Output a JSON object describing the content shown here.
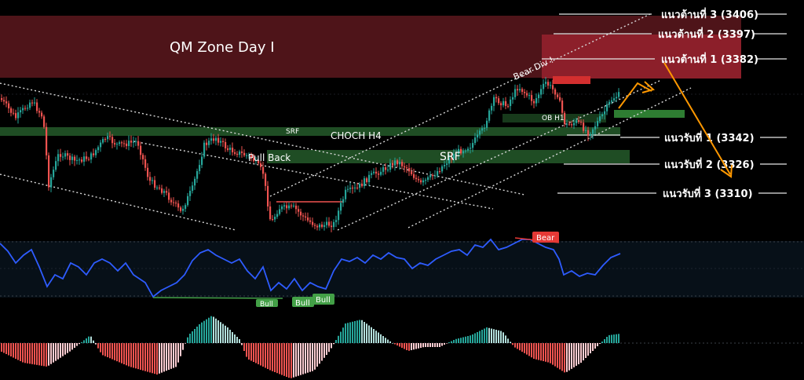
{
  "chart_data": {
    "type": "candlestick",
    "zone": {
      "label": "QM Zone Day I"
    },
    "levels": [
      {
        "label": "แนวต้านที่ 3 (3406)",
        "value": 3406,
        "kind": "resistance"
      },
      {
        "label": "แนวต้านที่ 2 (3397)",
        "value": 3397,
        "kind": "resistance"
      },
      {
        "label": "แนวต้านที่ 1 (3382)",
        "value": 3382,
        "kind": "resistance"
      },
      {
        "label": "แนวรับที่ 1 (3342)",
        "value": 3342,
        "kind": "support"
      },
      {
        "label": "แนวรับที่ 2 (3326)",
        "value": 3326,
        "kind": "support"
      },
      {
        "label": "แนวรับที่ 3 (3310)",
        "value": 3310,
        "kind": "support"
      }
    ],
    "annotations": {
      "choch": "CHOCH H4",
      "srf_small": "SRF",
      "srf_large": "SRF",
      "pullback": "Pull Back",
      "bear_div": "Bear Div !",
      "ob": "OB H1"
    },
    "rsi_labels": {
      "bear": "Bear",
      "bull_1": "Bull",
      "bull_2": "Bull",
      "bull_3": "Bull"
    },
    "colors": {
      "up": "#26a69a",
      "down": "#ef5350",
      "zone": "#5a1a1f",
      "demand": "#1f4d24",
      "rsi_line": "#2e5cff",
      "arrow": "#ff9800",
      "bear_badge": "#e53935",
      "bull_badge": "#43a047"
    }
  }
}
